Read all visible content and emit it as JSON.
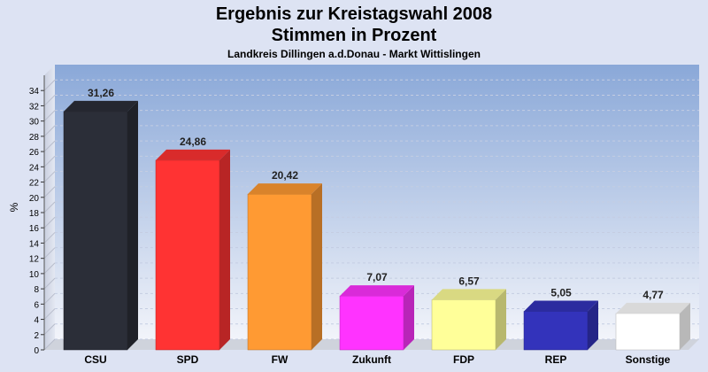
{
  "chart_data": {
    "type": "bar",
    "title_lines": [
      "Ergebnis zur Kreistagswahl 2008",
      "Stimmen in Prozent"
    ],
    "subtitle": "Landkreis Dillingen a.d.Donau - Markt Wittislingen",
    "ylabel": "%",
    "xlabel": "",
    "ylim": [
      0,
      36
    ],
    "yticks": [
      0,
      2,
      4,
      6,
      8,
      10,
      12,
      14,
      16,
      18,
      20,
      22,
      24,
      26,
      28,
      30,
      32,
      34
    ],
    "grid": true,
    "legend": "none",
    "categories": [
      "CSU",
      "SPD",
      "FW",
      "Zukunft",
      "FDP",
      "REP",
      "Sonstige"
    ],
    "values": [
      31.26,
      24.86,
      20.42,
      7.07,
      6.57,
      5.05,
      4.77
    ],
    "value_labels": [
      "31,26",
      "24,86",
      "20,42",
      "7,07",
      "6,57",
      "5,05",
      "4,77"
    ],
    "colors": [
      "#2b2e38",
      "#ff3333",
      "#ff9a33",
      "#ff33ff",
      "#ffff99",
      "#3333bb",
      "#ffffff"
    ]
  }
}
